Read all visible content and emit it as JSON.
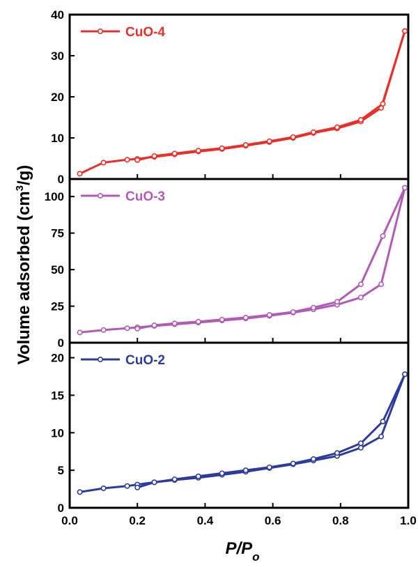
{
  "ylabel_main": "Volume adsorbed (cm",
  "ylabel_sup": "3",
  "ylabel_tail": "/g)",
  "xlabel_main": "P/P",
  "xlabel_sub": "o",
  "chart_data": [
    {
      "type": "line",
      "legend": "CuO-4",
      "color": "#e8302a",
      "ylim": [
        0,
        40
      ],
      "yticks": [
        0,
        10,
        20,
        30,
        40
      ],
      "xlim": [
        0,
        1.0
      ],
      "xticks": [
        "0.0",
        "0.2",
        "0.4",
        "0.6",
        "0.8",
        "1.0"
      ],
      "legend_position": "top-left",
      "series": [
        {
          "x": [
            0.03,
            0.1,
            0.17,
            0.2,
            0.25,
            0.31,
            0.38,
            0.45,
            0.52,
            0.59,
            0.66,
            0.72,
            0.79,
            0.86,
            0.92,
            0.99
          ],
          "y": [
            1.3,
            4.0,
            4.7,
            4.9,
            5.4,
            6.0,
            6.7,
            7.3,
            8.1,
            9.0,
            10.0,
            11.2,
            12.3,
            14.0,
            17.3,
            36.0
          ]
        },
        {
          "x": [
            0.99,
            0.925,
            0.86,
            0.79,
            0.72,
            0.66,
            0.59,
            0.52,
            0.45,
            0.38,
            0.31,
            0.25,
            0.2
          ],
          "y": [
            36.0,
            18.3,
            14.4,
            12.6,
            11.4,
            10.2,
            9.2,
            8.3,
            7.5,
            6.9,
            6.2,
            5.6,
            4.6
          ]
        }
      ]
    },
    {
      "type": "line",
      "legend": "CuO-3",
      "color": "#b15bb6",
      "ylim": [
        0,
        112
      ],
      "yticks": [
        0,
        25,
        50,
        75,
        100
      ],
      "xlim": [
        0,
        1.0
      ],
      "xticks": [
        "0.0",
        "0.2",
        "0.4",
        "0.6",
        "0.8",
        "1.0"
      ],
      "legend_position": "top-left",
      "series": [
        {
          "x": [
            0.03,
            0.1,
            0.17,
            0.2,
            0.25,
            0.31,
            0.38,
            0.45,
            0.52,
            0.59,
            0.66,
            0.72,
            0.79,
            0.86,
            0.92,
            0.99
          ],
          "y": [
            7.0,
            8.7,
            9.9,
            10.5,
            11.5,
            12.6,
            13.8,
            15.2,
            16.6,
            18.4,
            20.6,
            22.8,
            26.0,
            31.0,
            40.0,
            106.0
          ]
        },
        {
          "x": [
            0.99,
            0.925,
            0.86,
            0.79,
            0.72,
            0.66,
            0.59,
            0.52,
            0.45,
            0.38,
            0.31,
            0.25,
            0.2
          ],
          "y": [
            106.0,
            73.0,
            40.0,
            28.0,
            24.0,
            21.0,
            19.0,
            17.2,
            15.8,
            14.4,
            13.2,
            11.9,
            9.6
          ]
        }
      ]
    },
    {
      "type": "line",
      "legend": "CuO-2",
      "color": "#2d3c9c",
      "ylim": [
        0,
        22
      ],
      "yticks": [
        0,
        5,
        10,
        15,
        20
      ],
      "xlim": [
        0,
        1.0
      ],
      "xticks": [
        "0.0",
        "0.2",
        "0.4",
        "0.6",
        "0.8",
        "1.0"
      ],
      "legend_position": "top-left",
      "series": [
        {
          "x": [
            0.03,
            0.1,
            0.17,
            0.2,
            0.25,
            0.31,
            0.38,
            0.45,
            0.52,
            0.59,
            0.66,
            0.72,
            0.79,
            0.86,
            0.92,
            0.99
          ],
          "y": [
            2.1,
            2.6,
            2.9,
            3.1,
            3.4,
            3.7,
            4.0,
            4.4,
            4.8,
            5.3,
            5.8,
            6.3,
            6.9,
            8.0,
            9.5,
            17.8
          ]
        },
        {
          "x": [
            0.99,
            0.925,
            0.86,
            0.79,
            0.72,
            0.66,
            0.59,
            0.52,
            0.45,
            0.38,
            0.31,
            0.25,
            0.2
          ],
          "y": [
            17.8,
            11.5,
            8.6,
            7.3,
            6.5,
            5.9,
            5.4,
            5.0,
            4.6,
            4.2,
            3.8,
            3.4,
            2.7
          ]
        }
      ]
    }
  ]
}
